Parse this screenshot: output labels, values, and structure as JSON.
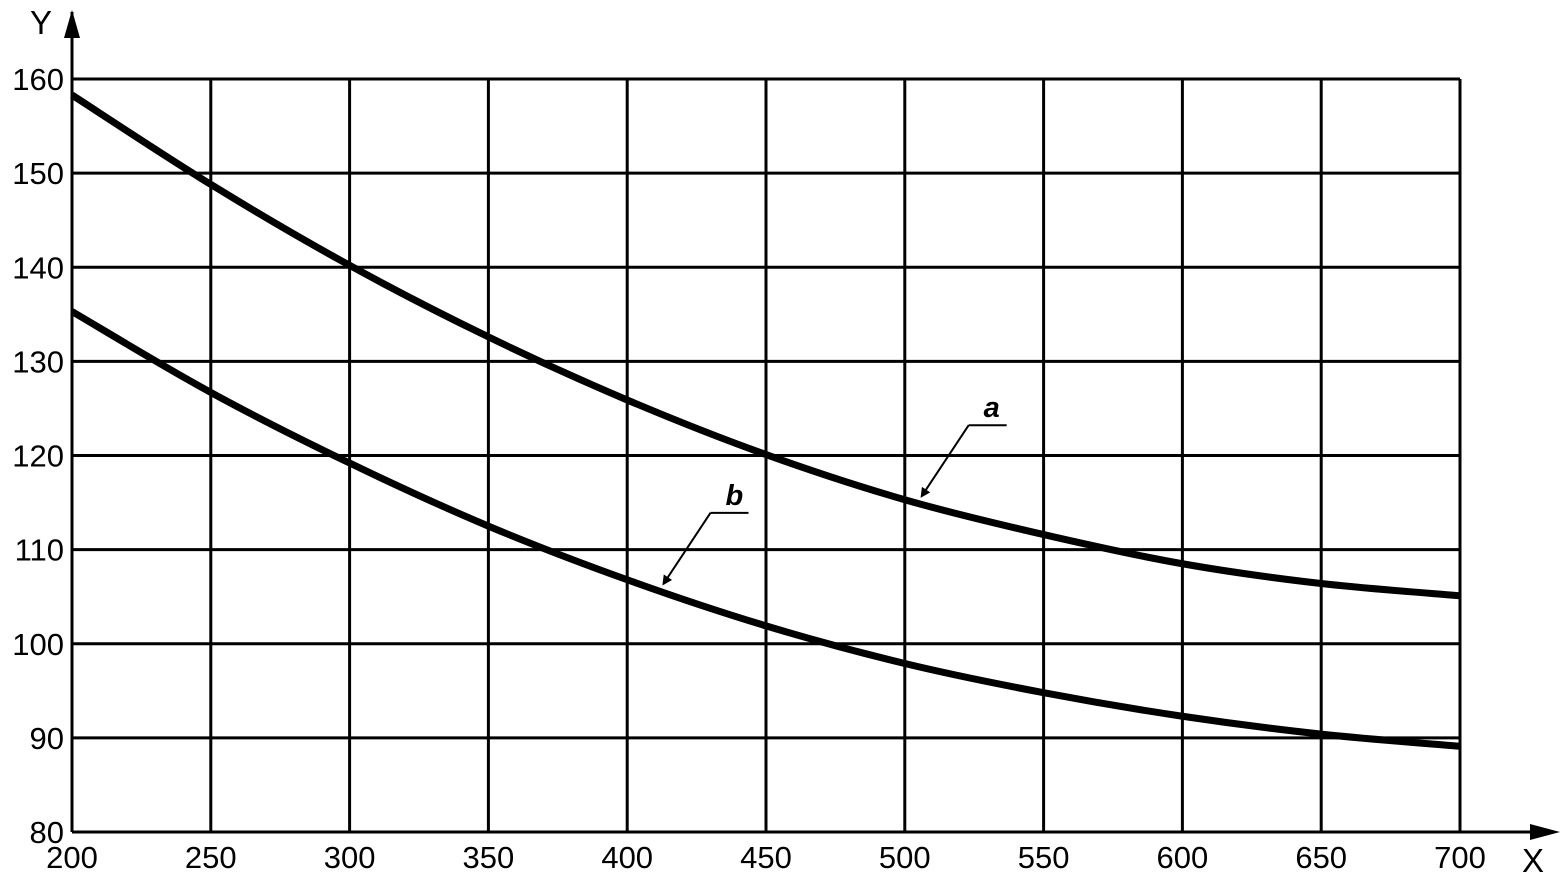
{
  "chart_data": {
    "type": "line",
    "title": "",
    "xlabel": "X",
    "ylabel": "Y",
    "xlim": [
      200,
      700
    ],
    "ylim": [
      80,
      160
    ],
    "x_ticks": [
      200,
      250,
      300,
      350,
      400,
      450,
      500,
      550,
      600,
      650,
      700
    ],
    "y_ticks": [
      80,
      90,
      100,
      110,
      120,
      130,
      140,
      150,
      160
    ],
    "grid": true,
    "legend": "none",
    "series": [
      {
        "name": "a",
        "x": [
          200,
          250,
          300,
          350,
          400,
          450,
          500,
          550,
          600,
          650,
          700
        ],
        "y": [
          158.3,
          148.8,
          140.2,
          132.6,
          125.9,
          120.1,
          115.3,
          111.6,
          108.5,
          106.4,
          105.1
        ]
      },
      {
        "name": "b",
        "x": [
          200,
          250,
          300,
          350,
          400,
          450,
          500,
          550,
          600,
          650,
          700
        ],
        "y": [
          135.3,
          126.7,
          119.2,
          112.5,
          106.8,
          101.9,
          97.9,
          94.8,
          92.3,
          90.4,
          89.1
        ]
      }
    ],
    "annotations": [
      {
        "text": "a",
        "series": "a",
        "points_to_x": 505
      },
      {
        "text": "b",
        "series": "b",
        "points_to_x": 412
      }
    ]
  },
  "colors": {
    "line": "#000000",
    "grid": "#000000",
    "background": "#ffffff"
  }
}
